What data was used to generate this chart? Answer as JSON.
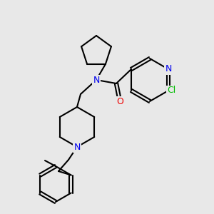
{
  "bg_color": "#e8e8e8",
  "bond_color": "#000000",
  "bond_width": 1.5,
  "atom_colors": {
    "N": "#0000ee",
    "O": "#ee0000",
    "Cl": "#00bb00",
    "C": "#000000"
  },
  "font_size": 8.5
}
